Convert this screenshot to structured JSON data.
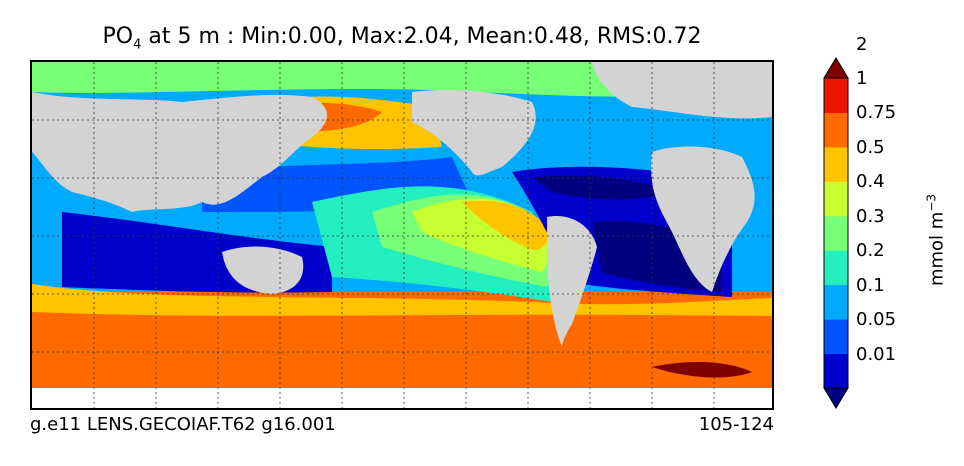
{
  "chart_data": {
    "type": "heatmap",
    "title": {
      "variable": "PO",
      "subscript": "4",
      "rest": " at 5 m : Min:0.00, Max:2.04, Mean:0.48, RMS:0.72"
    },
    "stats": {
      "min": 0.0,
      "max": 2.04,
      "mean": 0.48,
      "rms": 0.72
    },
    "colorbar": {
      "label": "mmol m",
      "label_superscript": "−3",
      "levels": [
        "0.01",
        "0.05",
        "0.1",
        "0.2",
        "0.3",
        "0.4",
        "0.5",
        "0.75",
        "1",
        "2"
      ],
      "colors": [
        "#000080",
        "#0000cd",
        "#0055ff",
        "#00aaff",
        "#22eec0",
        "#77ff77",
        "#c8ff30",
        "#ffc400",
        "#ff6a00",
        "#ee1500",
        "#7f0000"
      ],
      "extend": "both"
    },
    "land_color": "#d3d3d3",
    "grid": true
  },
  "footer": {
    "left": "g.e11 LENS.GECOIAF.T62 g16.001",
    "right": "105-124"
  }
}
